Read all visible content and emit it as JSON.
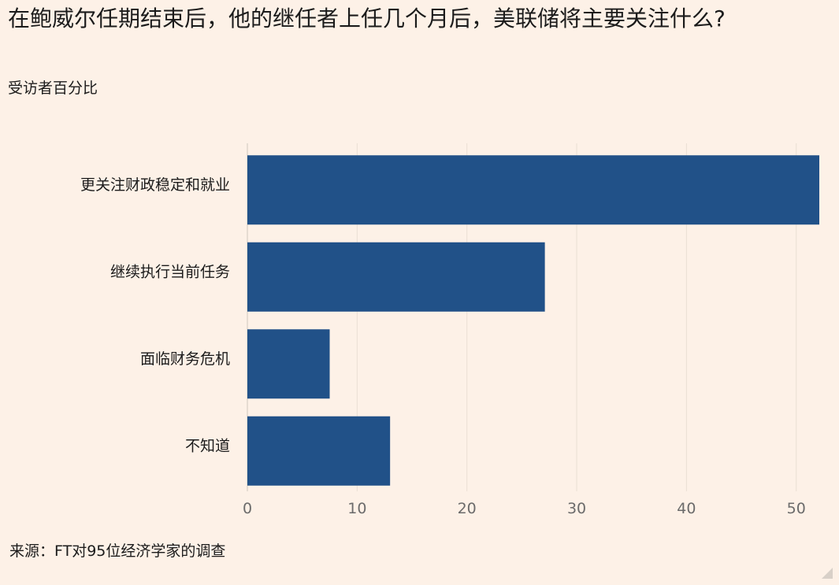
{
  "chart_data": {
    "type": "bar",
    "orientation": "horizontal",
    "title": "在鲍威尔任期结束后，他的继任者上任几个月后，美联储将主要关注什么?",
    "subtitle": "受访者百分比",
    "categories": [
      "更关注财政稳定和就业",
      "继续执行当前任务",
      "面临财务危机",
      "不知道"
    ],
    "values": [
      52.1,
      27.1,
      7.5,
      13.0
    ],
    "xlim": [
      0,
      52.1
    ],
    "xticks": [
      0,
      10,
      20,
      30,
      40,
      50
    ],
    "grid": true,
    "bar_color": "#215188",
    "source": "来源：FT对95位经济学家的调查"
  }
}
